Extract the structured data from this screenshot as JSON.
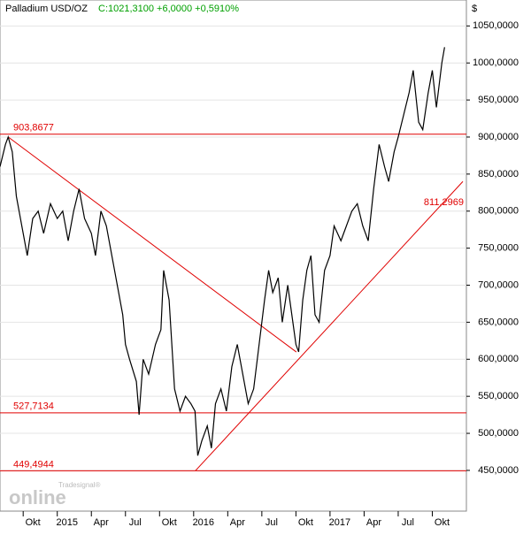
{
  "chart_data": {
    "type": "line",
    "title": "Palladium USD/OZ",
    "subtitle": "C:1021,3100 +6,0000 +0,5910%",
    "y_unit": "$",
    "logo": "online",
    "logo_top": "Tradesignal®",
    "xlim": [
      2014.58,
      2018.0
    ],
    "xticks": [
      {
        "value": 2014.75,
        "label": "Okt"
      },
      {
        "value": 2015.0,
        "label": "2015"
      },
      {
        "value": 2015.25,
        "label": "Apr"
      },
      {
        "value": 2015.5,
        "label": "Jul"
      },
      {
        "value": 2015.75,
        "label": "Okt"
      },
      {
        "value": 2016.0,
        "label": "2016"
      },
      {
        "value": 2016.25,
        "label": "Apr"
      },
      {
        "value": 2016.5,
        "label": "Jul"
      },
      {
        "value": 2016.75,
        "label": "Okt"
      },
      {
        "value": 2017.0,
        "label": "2017"
      },
      {
        "value": 2017.25,
        "label": "Apr"
      },
      {
        "value": 2017.5,
        "label": "Jul"
      },
      {
        "value": 2017.75,
        "label": "Okt"
      }
    ],
    "ylim": [
      395,
      1085
    ],
    "yticks": [
      {
        "value": 450,
        "label": "450,0000"
      },
      {
        "value": 500,
        "label": "500,0000"
      },
      {
        "value": 550,
        "label": "550,0000"
      },
      {
        "value": 600,
        "label": "600,0000"
      },
      {
        "value": 650,
        "label": "650,0000"
      },
      {
        "value": 700,
        "label": "700,0000"
      },
      {
        "value": 750,
        "label": "750,0000"
      },
      {
        "value": 800,
        "label": "800,0000"
      },
      {
        "value": 850,
        "label": "850,0000"
      },
      {
        "value": 900,
        "label": "900,0000"
      },
      {
        "value": 950,
        "label": "950,0000"
      },
      {
        "value": 1000,
        "label": "1000,0000"
      },
      {
        "value": 1050,
        "label": "1050,0000"
      }
    ],
    "grid": true,
    "series": [
      {
        "name": "Palladium USD/OZ",
        "color": "#000000",
        "x": [
          2014.58,
          2014.62,
          2014.64,
          2014.67,
          2014.7,
          2014.74,
          2014.78,
          2014.82,
          2014.86,
          2014.9,
          2014.95,
          2015.0,
          2015.04,
          2015.08,
          2015.12,
          2015.16,
          2015.2,
          2015.25,
          2015.28,
          2015.32,
          2015.36,
          2015.4,
          2015.44,
          2015.48,
          2015.5,
          2015.53,
          2015.58,
          2015.6,
          2015.63,
          2015.67,
          2015.72,
          2015.76,
          2015.78,
          2015.82,
          2015.86,
          2015.9,
          2015.94,
          2015.98,
          2016.01,
          2016.03,
          2016.06,
          2016.1,
          2016.13,
          2016.16,
          2016.2,
          2016.24,
          2016.28,
          2016.32,
          2016.36,
          2016.4,
          2016.44,
          2016.48,
          2016.52,
          2016.55,
          2016.58,
          2016.62,
          2016.65,
          2016.69,
          2016.72,
          2016.75,
          2016.77,
          2016.8,
          2016.83,
          2016.86,
          2016.89,
          2016.92,
          2016.96,
          2017.0,
          2017.03,
          2017.08,
          2017.12,
          2017.16,
          2017.2,
          2017.24,
          2017.28,
          2017.32,
          2017.36,
          2017.4,
          2017.43,
          2017.47,
          2017.5,
          2017.54,
          2017.58,
          2017.61,
          2017.65,
          2017.68,
          2017.72,
          2017.75,
          2017.78,
          2017.82,
          2017.84
        ],
        "values": [
          860,
          890,
          900,
          880,
          820,
          780,
          740,
          790,
          800,
          770,
          810,
          790,
          800,
          760,
          800,
          830,
          790,
          770,
          740,
          800,
          780,
          740,
          700,
          660,
          620,
          600,
          570,
          525,
          600,
          580,
          620,
          640,
          720,
          680,
          560,
          530,
          550,
          540,
          530,
          470,
          490,
          510,
          480,
          540,
          560,
          530,
          590,
          620,
          580,
          540,
          560,
          620,
          680,
          720,
          690,
          710,
          650,
          700,
          660,
          620,
          610,
          680,
          720,
          740,
          660,
          650,
          720,
          740,
          780,
          760,
          780,
          800,
          810,
          780,
          760,
          830,
          890,
          860,
          840,
          880,
          900,
          930,
          960,
          990,
          920,
          910,
          960,
          990,
          940,
          1000,
          1021.31
        ]
      }
    ],
    "hlines": [
      {
        "value": 903.8677,
        "label": "903,8677"
      },
      {
        "value": 527.7134,
        "label": "527,7134"
      },
      {
        "value": 449.4944,
        "label": "449,4944"
      }
    ],
    "trendlines": [
      {
        "x": [
          2014.643,
          2016.753
        ],
        "values": [
          899.7,
          609.8
        ]
      },
      {
        "x": [
          2016.013,
          2017.974
        ],
        "values": [
          449.5,
          840
        ],
        "end_label": {
          "value": 811.2969,
          "label": "811,2969"
        }
      }
    ],
    "line_color": "#e00000"
  }
}
